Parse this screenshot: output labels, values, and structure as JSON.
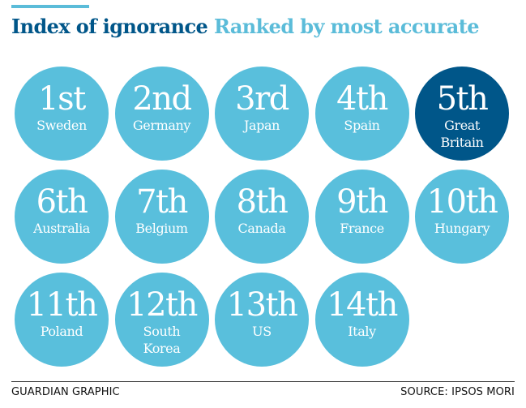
{
  "header": {
    "title": "Index of ignorance",
    "subtitle": "Ranked by most accurate"
  },
  "colors": {
    "accent": "#5bbcd9",
    "circle": "#59bfdc",
    "highlight": "#005689",
    "title": "#005689"
  },
  "rankings": [
    {
      "rank": "1st",
      "country": "Sweden",
      "highlight": false
    },
    {
      "rank": "2nd",
      "country": "Germany",
      "highlight": false
    },
    {
      "rank": "3rd",
      "country": "Japan",
      "highlight": false
    },
    {
      "rank": "4th",
      "country": "Spain",
      "highlight": false
    },
    {
      "rank": "5th",
      "country": "Great Britain",
      "highlight": true
    },
    {
      "rank": "6th",
      "country": "Australia",
      "highlight": false
    },
    {
      "rank": "7th",
      "country": "Belgium",
      "highlight": false
    },
    {
      "rank": "8th",
      "country": "Canada",
      "highlight": false
    },
    {
      "rank": "9th",
      "country": "France",
      "highlight": false
    },
    {
      "rank": "10th",
      "country": "Hungary",
      "highlight": false
    },
    {
      "rank": "11th",
      "country": "Poland",
      "highlight": false
    },
    {
      "rank": "12th",
      "country": "South Korea",
      "highlight": false
    },
    {
      "rank": "13th",
      "country": "US",
      "highlight": false
    },
    {
      "rank": "14th",
      "country": "Italy",
      "highlight": false
    }
  ],
  "footer": {
    "credit": "GUARDIAN GRAPHIC",
    "source": "SOURCE: IPSOS MORI"
  }
}
